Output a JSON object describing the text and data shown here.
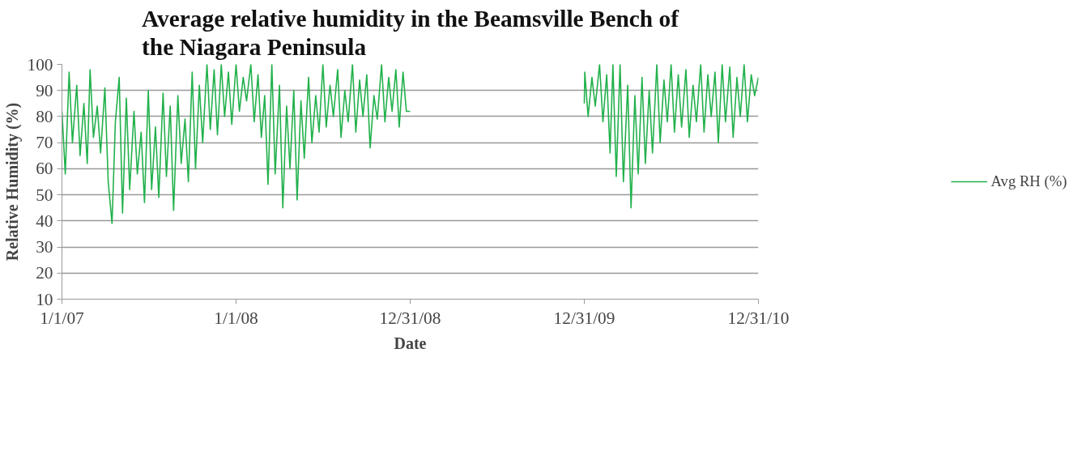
{
  "chart_data": {
    "type": "line",
    "title": "Average relative humidity in the Beamsville Bench of\nthe Niagara Peninsula",
    "xlabel": "Date",
    "ylabel": "Relative Humidity (%)",
    "x": [
      "2007-01-01",
      "2007-01-08",
      "2007-01-16",
      "2007-01-23",
      "2007-02-01",
      "2007-02-08",
      "2007-02-16",
      "2007-02-23",
      "2007-03-01",
      "2007-03-08",
      "2007-03-16",
      "2007-03-23",
      "2007-04-01",
      "2007-04-08",
      "2007-04-16",
      "2007-04-23",
      "2007-05-01",
      "2007-05-08",
      "2007-05-16",
      "2007-05-23",
      "2007-06-01",
      "2007-06-08",
      "2007-06-16",
      "2007-06-23",
      "2007-07-01",
      "2007-07-08",
      "2007-07-16",
      "2007-07-23",
      "2007-08-01",
      "2007-08-08",
      "2007-08-16",
      "2007-08-23",
      "2007-09-01",
      "2007-09-08",
      "2007-09-16",
      "2007-09-23",
      "2007-10-01",
      "2007-10-08",
      "2007-10-16",
      "2007-10-23",
      "2007-11-01",
      "2007-11-08",
      "2007-11-16",
      "2007-11-23",
      "2007-12-01",
      "2007-12-08",
      "2007-12-16",
      "2007-12-23",
      "2008-01-01",
      "2008-01-08",
      "2008-01-16",
      "2008-01-23",
      "2008-02-01",
      "2008-02-08",
      "2008-02-16",
      "2008-02-23",
      "2008-03-01",
      "2008-03-08",
      "2008-03-16",
      "2008-03-23",
      "2008-04-01",
      "2008-04-08",
      "2008-04-16",
      "2008-04-23",
      "2008-05-01",
      "2008-05-08",
      "2008-05-16",
      "2008-05-23",
      "2008-06-01",
      "2008-06-08",
      "2008-06-16",
      "2008-06-23",
      "2008-07-01",
      "2008-07-08",
      "2008-07-16",
      "2008-07-23",
      "2008-08-01",
      "2008-08-08",
      "2008-08-16",
      "2008-08-23",
      "2008-09-01",
      "2008-09-08",
      "2008-09-16",
      "2008-09-23",
      "2008-10-01",
      "2008-10-08",
      "2008-10-16",
      "2008-10-23",
      "2008-11-01",
      "2008-11-08",
      "2008-11-16",
      "2008-11-23",
      "2008-12-01",
      "2008-12-08",
      "2008-12-16",
      "2008-12-23",
      "2008-12-31",
      "2009-06-30",
      "2009-12-31",
      "2010-01-01",
      "2010-01-08",
      "2010-01-16",
      "2010-01-23",
      "2010-02-01",
      "2010-02-08",
      "2010-02-16",
      "2010-02-23",
      "2010-03-01",
      "2010-03-08",
      "2010-03-16",
      "2010-03-23",
      "2010-04-01",
      "2010-04-08",
      "2010-04-16",
      "2010-04-23",
      "2010-05-01",
      "2010-05-08",
      "2010-05-16",
      "2010-05-23",
      "2010-06-01",
      "2010-06-08",
      "2010-06-16",
      "2010-06-23",
      "2010-07-01",
      "2010-07-08",
      "2010-07-16",
      "2010-07-23",
      "2010-08-01",
      "2010-08-08",
      "2010-08-16",
      "2010-08-23",
      "2010-09-01",
      "2010-09-08",
      "2010-09-16",
      "2010-09-23",
      "2010-10-01",
      "2010-10-08",
      "2010-10-16",
      "2010-10-23",
      "2010-11-01",
      "2010-11-08",
      "2010-11-16",
      "2010-11-23",
      "2010-12-01",
      "2010-12-08",
      "2010-12-16",
      "2010-12-23",
      "2010-12-31"
    ],
    "series": [
      {
        "name": "Avg RH (%)",
        "color": "#22b14c",
        "values": [
          82,
          58,
          97,
          70,
          92,
          65,
          85,
          62,
          98,
          72,
          84,
          66,
          91,
          55,
          39,
          78,
          95,
          43,
          87,
          52,
          82,
          58,
          74,
          47,
          90,
          52,
          76,
          49,
          89,
          57,
          84,
          44,
          88,
          62,
          79,
          55,
          97,
          60,
          92,
          70,
          100,
          75,
          98,
          73,
          100,
          80,
          97,
          77,
          100,
          82,
          95,
          86,
          100,
          78,
          96,
          72,
          88,
          54,
          100,
          58,
          92,
          45,
          84,
          60,
          90,
          48,
          86,
          64,
          95,
          70,
          88,
          74,
          100,
          76,
          92,
          80,
          98,
          72,
          90,
          78,
          100,
          74,
          94,
          80,
          96,
          68,
          88,
          79,
          100,
          78,
          95,
          82,
          98,
          76,
          97,
          82,
          82,
          null,
          85,
          97,
          80,
          95,
          84,
          100,
          78,
          96,
          66,
          100,
          57,
          100,
          55,
          92,
          45,
          88,
          58,
          95,
          62,
          90,
          66,
          100,
          70,
          94,
          78,
          100,
          74,
          96,
          76,
          98,
          72,
          92,
          78,
          100,
          74,
          96,
          80,
          97,
          70,
          100,
          78,
          99,
          72,
          95,
          80,
          100,
          78,
          96,
          88,
          95
        ]
      }
    ],
    "xlim": [
      "2007-01-01",
      "2010-12-31"
    ],
    "xticks": [
      {
        "value": "2007-01-01",
        "label": "1/1/07"
      },
      {
        "value": "2008-01-01",
        "label": "1/1/08"
      },
      {
        "value": "2008-12-31",
        "label": "12/31/08"
      },
      {
        "value": "2009-12-31",
        "label": "12/31/09"
      },
      {
        "value": "2010-12-31",
        "label": "12/31/10"
      }
    ],
    "ylim": [
      10,
      100
    ],
    "yticks": [
      10,
      20,
      30,
      40,
      50,
      60,
      70,
      80,
      90,
      100
    ],
    "grid": "y",
    "legend": "right",
    "marker": "none",
    "line_style": "solid"
  }
}
